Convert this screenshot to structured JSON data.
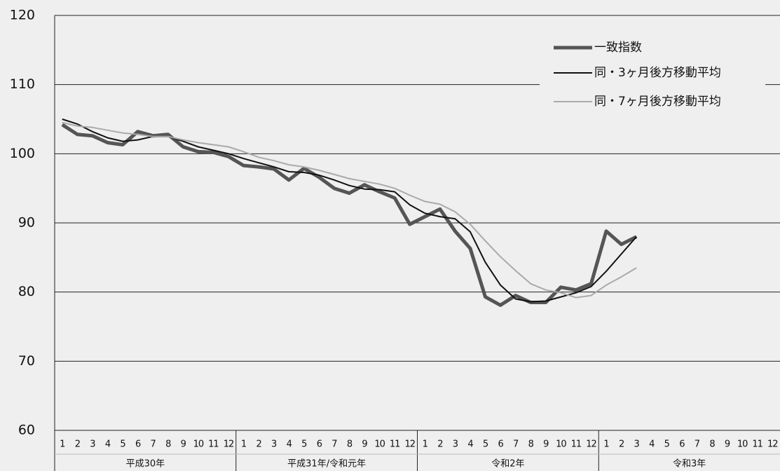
{
  "chart_data": {
    "type": "line",
    "categories": [
      "1",
      "2",
      "3",
      "4",
      "5",
      "6",
      "7",
      "8",
      "9",
      "10",
      "11",
      "12",
      "1",
      "2",
      "3",
      "4",
      "5",
      "6",
      "7",
      "8",
      "9",
      "10",
      "11",
      "12",
      "1",
      "2",
      "3",
      "4",
      "5",
      "6",
      "7",
      "8",
      "9",
      "10",
      "11",
      "12",
      "1",
      "2",
      "3",
      "4",
      "5",
      "6",
      "7",
      "8",
      "9",
      "10",
      "11",
      "12"
    ],
    "groups": [
      "平成30年",
      "平成31年/令和元年",
      "令和2年",
      "令和3年"
    ],
    "series": [
      {
        "name": "一致指数",
        "color": "#555555",
        "values": [
          104.2,
          102.8,
          102.6,
          101.6,
          101.3,
          103.2,
          102.6,
          102.8,
          101.0,
          100.3,
          100.2,
          99.6,
          98.3,
          98.1,
          97.8,
          96.2,
          97.9,
          96.6,
          95.0,
          94.3,
          95.5,
          94.5,
          93.6,
          89.8,
          90.9,
          92.0,
          88.8,
          86.3,
          79.3,
          78.1,
          79.5,
          78.5,
          78.5,
          80.7,
          80.3,
          81.2,
          88.8,
          86.9,
          88.0,
          null,
          null,
          null,
          null,
          null,
          null,
          null,
          null,
          null
        ]
      },
      {
        "name": "同・3ヶ月後方移動平均",
        "color": "#111111",
        "values": [
          105.0,
          104.3,
          103.2,
          102.3,
          101.8,
          102.0,
          102.5,
          102.5,
          101.8,
          101.0,
          100.5,
          100.0,
          99.3,
          98.7,
          98.1,
          97.4,
          97.3,
          96.9,
          96.2,
          95.4,
          94.9,
          94.8,
          94.5,
          92.6,
          91.4,
          90.9,
          90.6,
          88.7,
          84.3,
          81.0,
          79.0,
          78.6,
          78.7,
          79.3,
          79.9,
          80.8,
          83.0,
          85.5,
          88.0,
          null,
          null,
          null,
          null,
          null,
          null,
          null,
          null,
          null
        ]
      },
      {
        "name": "同・7ヶ月後方移動平均",
        "color": "#aaaaaa",
        "values": [
          104.5,
          104.0,
          103.8,
          103.4,
          103.0,
          102.8,
          102.5,
          102.5,
          102.0,
          101.6,
          101.3,
          101.0,
          100.3,
          99.5,
          99.0,
          98.4,
          98.1,
          97.6,
          97.0,
          96.4,
          96.0,
          95.6,
          95.0,
          94.0,
          93.1,
          92.7,
          91.6,
          89.8,
          87.4,
          85.1,
          83.1,
          81.2,
          80.3,
          79.9,
          79.2,
          79.5,
          81.0,
          82.2,
          83.5,
          null,
          null,
          null,
          null,
          null,
          null,
          null,
          null,
          null
        ]
      }
    ],
    "ylim": [
      60,
      120
    ],
    "yticks": [
      60,
      70,
      80,
      90,
      100,
      110,
      120
    ],
    "grid": true,
    "legend": "upper right"
  }
}
